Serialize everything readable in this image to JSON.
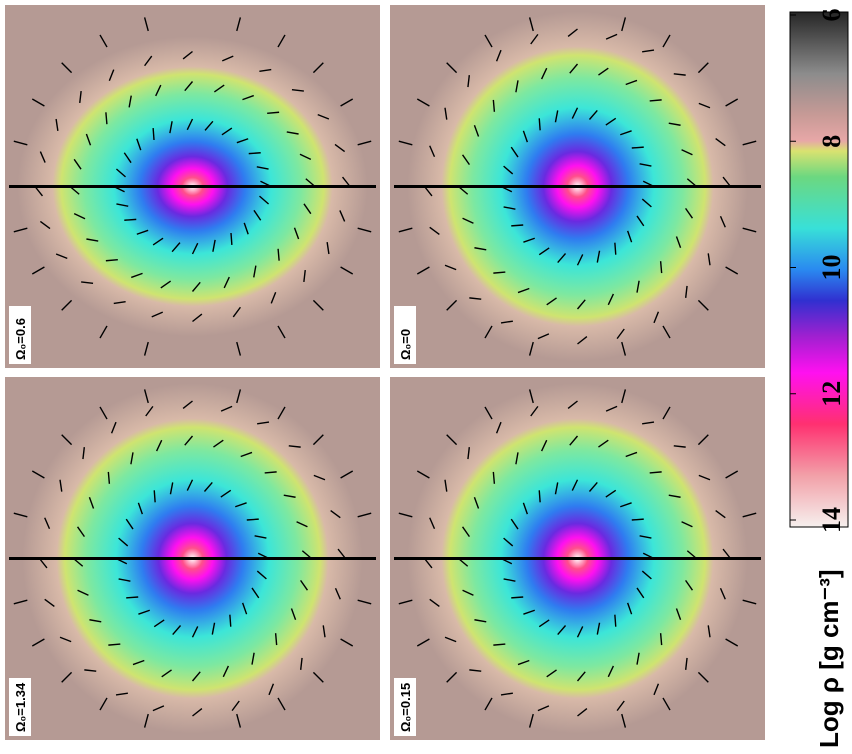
{
  "panels": [
    {
      "label": "Ω₀=0.6"
    },
    {
      "label": "Ω₀=1.34"
    },
    {
      "label": "Ω₀=0"
    },
    {
      "label": "Ω₀=0.15"
    }
  ],
  "colorbar": {
    "label": "Log ρ [g cm⁻³]",
    "lim": [
      6,
      14
    ],
    "ticks": [
      6,
      8,
      10,
      12,
      14
    ]
  }
}
